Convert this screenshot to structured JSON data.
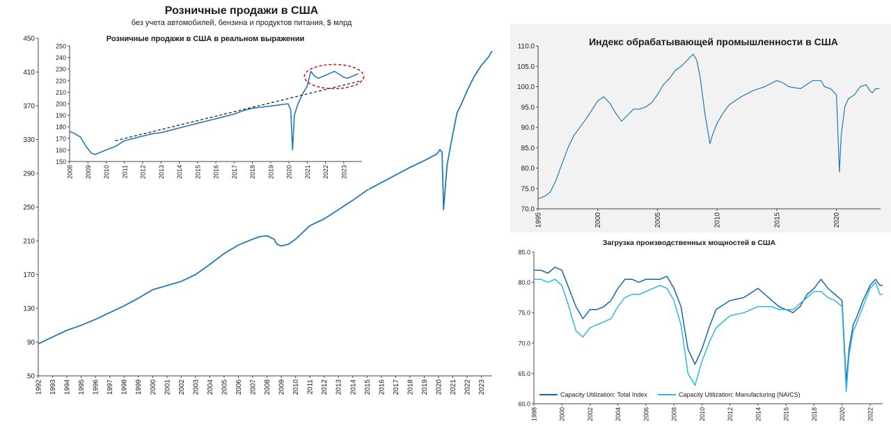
{
  "chart_data": [
    {
      "id": "retail",
      "type": "line",
      "title": "Розничные продажи в США",
      "subtitle": "без учета автомобилей, бензина и продуктов питания,  $ млрд",
      "ylim": [
        50,
        450
      ],
      "yticks": [
        50,
        90,
        130,
        170,
        210,
        250,
        290,
        330,
        370,
        410,
        450
      ],
      "xticks": [
        "1992",
        "1993",
        "1994",
        "1995",
        "1996",
        "1997",
        "1998",
        "1999",
        "2000",
        "2001",
        "2002",
        "2003",
        "2004",
        "2005",
        "2006",
        "2007",
        "2008",
        "2009",
        "2010",
        "2011",
        "2012",
        "2013",
        "2014",
        "2015",
        "2016",
        "2017",
        "2018",
        "2019",
        "2020",
        "2021",
        "2022",
        "2023"
      ],
      "xlim": [
        1992,
        2023.75
      ],
      "color": "#1f78b8",
      "x": [
        1992.0,
        1993.0,
        1994.0,
        1995.0,
        1996.0,
        1997.0,
        1998.0,
        1999.0,
        2000.0,
        2001.0,
        2002.0,
        2003.0,
        2004.0,
        2005.0,
        2006.0,
        2007.0,
        2007.5,
        2008.0,
        2008.5,
        2008.7,
        2009.0,
        2009.5,
        2010.0,
        2011.0,
        2012.0,
        2013.0,
        2014.0,
        2015.0,
        2016.0,
        2017.0,
        2018.0,
        2019.0,
        2019.9,
        2020.1,
        2020.25,
        2020.35,
        2020.6,
        2020.9,
        2021.1,
        2021.3,
        2021.6,
        2022.0,
        2022.5,
        2023.0,
        2023.5,
        2023.75
      ],
      "y": [
        88,
        96,
        104,
        110,
        117,
        125,
        133,
        142,
        152,
        157,
        162,
        170,
        182,
        195,
        205,
        212,
        215,
        216,
        212,
        206,
        204,
        206,
        212,
        228,
        236,
        247,
        258,
        270,
        279,
        288,
        297,
        305,
        313,
        318,
        315,
        247,
        300,
        328,
        345,
        362,
        372,
        388,
        405,
        418,
        428,
        435
      ]
    },
    {
      "id": "retail_real",
      "type": "line",
      "title": "Розничные продажи в США в реальном выражении",
      "ylim": [
        150,
        250
      ],
      "yticks": [
        150,
        160,
        170,
        180,
        190,
        200,
        210,
        220,
        230,
        240,
        250
      ],
      "xticks": [
        "2008",
        "2009",
        "2010",
        "2011",
        "2012",
        "2013",
        "2014",
        "2015",
        "2016",
        "2017",
        "2018",
        "2019",
        "2020",
        "2021",
        "2022",
        "2023"
      ],
      "xlim": [
        2008,
        2024
      ],
      "color": "#1f78b8",
      "x": [
        2008.0,
        2008.3,
        2008.6,
        2008.9,
        2009.2,
        2009.4,
        2009.7,
        2010.0,
        2010.5,
        2011.0,
        2011.5,
        2012.0,
        2012.5,
        2013.0,
        2013.5,
        2014.0,
        2014.5,
        2015.0,
        2015.5,
        2016.0,
        2016.5,
        2017.0,
        2017.5,
        2018.0,
        2018.5,
        2019.0,
        2019.5,
        2019.95,
        2020.1,
        2020.2,
        2020.3,
        2020.5,
        2020.8,
        2021.0,
        2021.2,
        2021.4,
        2021.6,
        2021.9,
        2022.2,
        2022.5,
        2022.8,
        2023.0,
        2023.2,
        2023.5,
        2023.8
      ],
      "y": [
        176,
        174,
        171,
        163,
        157,
        156,
        158,
        160,
        163,
        168,
        170,
        172,
        174,
        175,
        177,
        179,
        181,
        183,
        185,
        187,
        189,
        191,
        194,
        196,
        197,
        198,
        199,
        200,
        195,
        160,
        190,
        200,
        210,
        215,
        228,
        224,
        222,
        224,
        226,
        228,
        225,
        223,
        222,
        224,
        226
      ],
      "trend": {
        "x": [
          2010.5,
          2024
        ],
        "y": [
          168,
          220
        ]
      },
      "highlight": {
        "x": [
          2020.85,
          2024.1
        ],
        "y": [
          213,
          234
        ]
      }
    },
    {
      "id": "manufacturing",
      "type": "line",
      "title": "Индекс обрабатывающей промышленности в США",
      "ylim": [
        70,
        110
      ],
      "yticks": [
        70.0,
        75.0,
        80.0,
        85.0,
        90.0,
        95.0,
        100.0,
        105.0,
        110.0
      ],
      "ytick_labels": [
        "70.0",
        "75.0",
        "80.0",
        "85.0",
        "90.0",
        "95.0",
        "100.0",
        "105.0",
        "110.0"
      ],
      "xticks": [
        "1995",
        "2000",
        "2005",
        "2010",
        "2015",
        "2020"
      ],
      "xlim": [
        1995,
        2023.7
      ],
      "color": "#1f78b8",
      "x": [
        1995.0,
        1995.5,
        1996.0,
        1996.5,
        1997.0,
        1997.5,
        1998.0,
        1999.0,
        2000.0,
        2000.5,
        2001.0,
        2001.5,
        2002.0,
        2002.5,
        2003.0,
        2003.5,
        2004.0,
        2004.5,
        2005.0,
        2005.5,
        2006.0,
        2006.5,
        2007.0,
        2007.5,
        2008.0,
        2008.3,
        2008.6,
        2009.0,
        2009.4,
        2009.6,
        2010.0,
        2010.5,
        2011.0,
        2012.0,
        2013.0,
        2014.0,
        2015.0,
        2015.5,
        2016.0,
        2017.0,
        2018.0,
        2018.7,
        2019.0,
        2019.5,
        2020.0,
        2020.25,
        2020.4,
        2020.7,
        2021.0,
        2021.5,
        2022.0,
        2022.5,
        2022.8,
        2023.0,
        2023.3,
        2023.6
      ],
      "y": [
        72.5,
        73,
        74,
        77,
        81,
        85,
        88,
        92,
        96.5,
        97.5,
        96,
        93.5,
        91.5,
        93,
        94.5,
        94.5,
        95,
        96,
        98,
        100.5,
        102,
        104,
        105,
        106.5,
        108,
        106.5,
        102,
        93,
        86,
        88,
        91,
        93.5,
        95.5,
        97.5,
        99,
        100,
        101.5,
        101,
        100,
        99.5,
        101.5,
        101.5,
        100,
        99.5,
        98,
        79,
        88,
        95,
        97,
        98,
        100,
        100.5,
        99,
        98.5,
        99.5,
        99.5
      ]
    },
    {
      "id": "capacity",
      "type": "line",
      "title": "Загрузка производственных мощностей в США",
      "ylim": [
        60,
        85
      ],
      "yticks": [
        60.0,
        65.0,
        70.0,
        75.0,
        80.0,
        85.0
      ],
      "ytick_labels": [
        "60.0",
        "65.0",
        "70.0",
        "75.0",
        "80.0",
        "85.0"
      ],
      "xticks": [
        "1998",
        "2000",
        "2002",
        "2004",
        "2006",
        "2008",
        "2010",
        "2012",
        "2014",
        "2016",
        "2018",
        "2020",
        "2022"
      ],
      "xlim": [
        1998,
        2022.9
      ],
      "legend": "bottom-left",
      "series": [
        {
          "name": "Capacity Utilization: Total Index",
          "color": "#1565a8",
          "x": [
            1998.0,
            1998.5,
            1999.0,
            1999.5,
            2000.0,
            2000.5,
            2001.0,
            2001.5,
            2002.0,
            2002.5,
            2003.0,
            2003.5,
            2004.0,
            2004.5,
            2005.0,
            2005.5,
            2006.0,
            2006.5,
            2007.0,
            2007.5,
            2008.0,
            2008.5,
            2009.0,
            2009.5,
            2010.0,
            2010.5,
            2011.0,
            2012.0,
            2013.0,
            2014.0,
            2015.0,
            2015.5,
            2016.0,
            2016.5,
            2017.0,
            2017.5,
            2018.0,
            2018.5,
            2019.0,
            2019.5,
            2020.0,
            2020.3,
            2020.5,
            2020.8,
            2021.0,
            2021.5,
            2022.0,
            2022.4,
            2022.7,
            2022.9
          ],
          "y": [
            82,
            82,
            81.5,
            82.5,
            82,
            79,
            76,
            74,
            75.5,
            75.5,
            76,
            77,
            79,
            80.5,
            80.5,
            80,
            80.5,
            80.5,
            80.5,
            81,
            79,
            76,
            69,
            66.5,
            69,
            72.5,
            75.5,
            77,
            77.5,
            79,
            77,
            76,
            75.5,
            75,
            76,
            78,
            79,
            80.5,
            79,
            78,
            77,
            63.5,
            69,
            73,
            74,
            77,
            79.5,
            80.5,
            79.5,
            79.5
          ]
        },
        {
          "name": "Capacity Utilization: Manufacturing (NAICS)",
          "color": "#29b6e8",
          "x": [
            1998.0,
            1998.5,
            1999.0,
            1999.5,
            2000.0,
            2000.5,
            2001.0,
            2001.5,
            2002.0,
            2002.5,
            2003.0,
            2003.5,
            2004.0,
            2004.5,
            2005.0,
            2005.5,
            2006.0,
            2006.5,
            2007.0,
            2007.5,
            2008.0,
            2008.5,
            2009.0,
            2009.5,
            2010.0,
            2010.5,
            2011.0,
            2012.0,
            2013.0,
            2014.0,
            2015.0,
            2015.5,
            2016.0,
            2016.5,
            2017.0,
            2017.5,
            2018.0,
            2018.5,
            2019.0,
            2019.5,
            2020.0,
            2020.3,
            2020.5,
            2020.8,
            2021.0,
            2021.5,
            2022.0,
            2022.4,
            2022.7,
            2022.9
          ],
          "y": [
            80.5,
            80.5,
            80,
            80.5,
            79.5,
            76,
            72,
            71,
            72.5,
            73,
            73.5,
            74,
            76,
            77.5,
            78,
            78,
            78.5,
            79,
            79.5,
            79,
            77,
            73,
            65,
            63,
            67,
            70,
            72.5,
            74.5,
            75,
            76,
            76,
            75.5,
            75.5,
            75.5,
            76.5,
            77.5,
            78.5,
            78.5,
            77.5,
            77,
            76,
            62,
            68,
            72,
            73,
            76,
            79,
            80,
            78,
            78
          ]
        }
      ]
    }
  ]
}
